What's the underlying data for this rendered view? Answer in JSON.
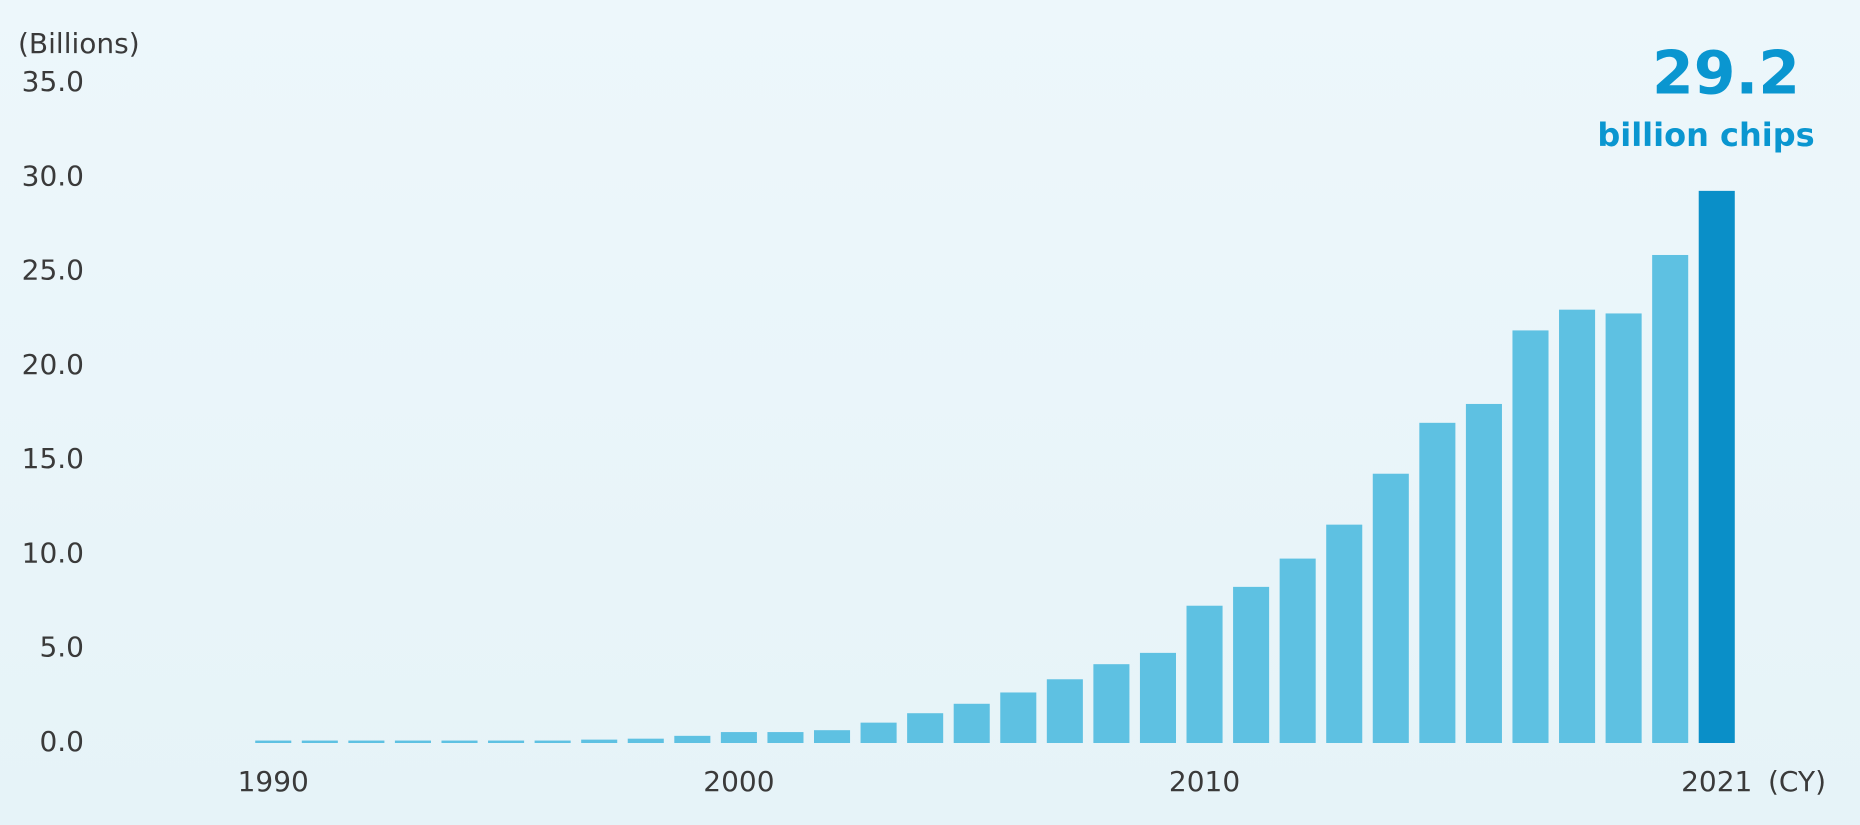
{
  "chart_data": {
    "type": "bar",
    "y_axis_label": "(Billions)",
    "x_axis_label": "(CY)",
    "annotations": [
      "29.2",
      "billion chips"
    ],
    "x": [
      1990,
      1991,
      1992,
      1993,
      1994,
      1995,
      1996,
      1997,
      1998,
      1999,
      2000,
      2001,
      2002,
      2003,
      2004,
      2005,
      2006,
      2007,
      2008,
      2009,
      2010,
      2011,
      2012,
      2013,
      2014,
      2015,
      2016,
      2017,
      2018,
      2019,
      2020,
      2021
    ],
    "values": [
      0.05,
      0.05,
      0.05,
      0.05,
      0.05,
      0.05,
      0.05,
      0.1,
      0.15,
      0.3,
      0.5,
      0.5,
      0.6,
      1.0,
      1.5,
      2.0,
      2.6,
      3.3,
      4.1,
      4.7,
      7.2,
      8.2,
      9.7,
      11.5,
      14.2,
      16.9,
      17.9,
      21.8,
      22.9,
      22.7,
      25.8,
      29.2
    ],
    "color": "#5ec1e2",
    "highlight_color": "#0a8fc8",
    "annotation_color": "#0a96d0",
    "xlim": [
      1989.2,
      2021.8
    ],
    "xticks": [
      1990,
      2000,
      2010,
      2021
    ],
    "ylim": [
      0,
      35
    ],
    "yticks": [
      {
        "value": 0,
        "label": "0.0"
      },
      {
        "value": 5,
        "label": "5.0"
      },
      {
        "value": 10,
        "label": "10.0"
      },
      {
        "value": 15,
        "label": "15.0"
      },
      {
        "value": 20,
        "label": "20.0"
      },
      {
        "value": 25,
        "label": "25.0"
      },
      {
        "value": 30,
        "label": "30.0"
      },
      {
        "value": 35,
        "label": "35.0"
      }
    ],
    "grid": false
  }
}
